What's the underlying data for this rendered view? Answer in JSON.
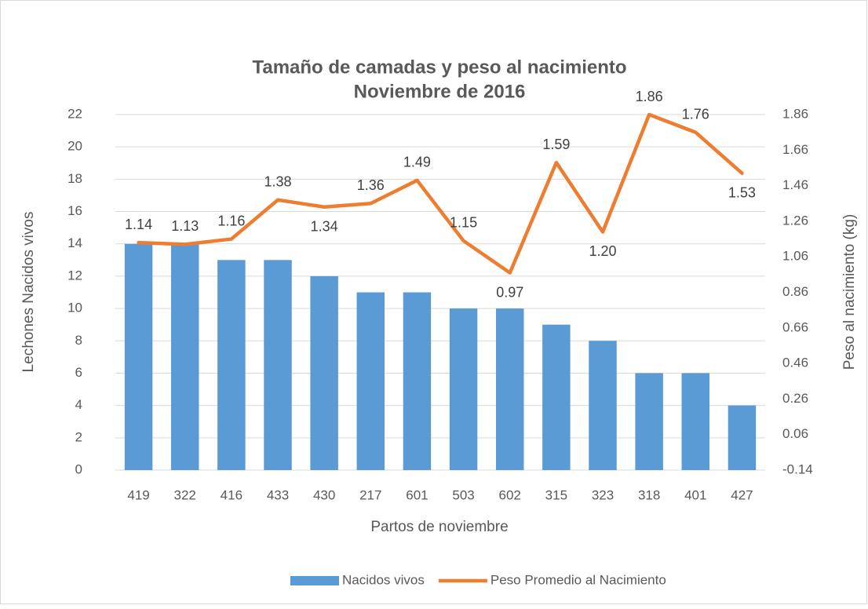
{
  "chart_data": {
    "type": "bar_line",
    "title": "Tamaño de camadas y peso al nacimiento",
    "subtitle": "Noviembre de 2016",
    "x_label": "Partos de noviembre",
    "y_label": "Lechones Nacidos vivos",
    "y2_label": "Peso al nacimiento (kg)",
    "categories": [
      "419",
      "322",
      "416",
      "433",
      "430",
      "217",
      "601",
      "503",
      "602",
      "315",
      "323",
      "318",
      "401",
      "427"
    ],
    "series": [
      {
        "name": "Nacidos vivos",
        "type": "bar",
        "color": "#5b9bd5",
        "values": [
          14,
          14,
          13,
          13,
          12,
          11,
          11,
          10,
          10,
          9,
          8,
          6,
          6,
          4
        ]
      },
      {
        "name": "Peso Promedio al Nacimiento",
        "type": "line",
        "axis": "y2",
        "color": "#ed7d31",
        "values": [
          1.14,
          1.13,
          1.16,
          1.38,
          1.34,
          1.36,
          1.49,
          1.15,
          0.97,
          1.59,
          1.2,
          1.86,
          1.76,
          1.53
        ],
        "value_labels": [
          "1.14",
          "1.13",
          "1.16",
          "1.38",
          "1.34",
          "1.36",
          "1.49",
          "1.15",
          "0.97",
          "1.59",
          "1.20",
          "1.86",
          "1.76",
          "1.53"
        ]
      }
    ],
    "ylim": [
      0,
      22
    ],
    "yticks": [
      0,
      2,
      4,
      6,
      8,
      10,
      12,
      14,
      16,
      18,
      20,
      22
    ],
    "y2lim": [
      -0.14,
      1.86
    ],
    "y2ticks": [
      -0.14,
      0.06,
      0.26,
      0.46,
      0.66,
      0.86,
      1.06,
      1.26,
      1.46,
      1.66,
      1.86
    ],
    "grid": true,
    "legend": "bottom"
  }
}
